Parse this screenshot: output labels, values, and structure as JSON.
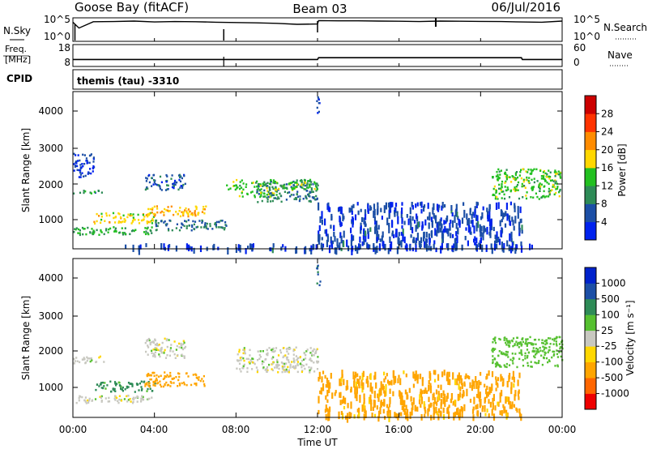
{
  "header": {
    "station": "Goose Bay (fitACF)",
    "beam": "Beam 03",
    "date": "06/Jul/2016"
  },
  "noise_panel": {
    "left_label": "N.Sky",
    "right_label": "N.Search",
    "left_ticks": [
      "10^5",
      "10^0"
    ],
    "right_ticks": [
      "10^5",
      "10^0"
    ]
  },
  "freq_panel": {
    "left_label_line1": "Freq.",
    "left_label_line2": "[MHz]",
    "left_ticks": [
      "18",
      "8"
    ],
    "right_label": "Nave",
    "right_ticks": [
      "60",
      "0"
    ]
  },
  "cpid": {
    "label": "CPID",
    "value": "themis (tau) -3310"
  },
  "power_panel": {
    "ylabel": "Slant Range [km]",
    "yticks": [
      "1000",
      "2000",
      "3000",
      "4000"
    ],
    "colorbar_label": "Power [dB]",
    "colorbar_ticks": [
      "4",
      "8",
      "12",
      "16",
      "20",
      "24",
      "28"
    ]
  },
  "velocity_panel": {
    "ylabel": "Slant Range [km]",
    "yticks": [
      "1000",
      "2000",
      "3000",
      "4000"
    ],
    "colorbar_label": "Velocity  [m s⁻¹]",
    "colorbar_ticks": [
      "-1000",
      "-500",
      "-100",
      "-25",
      "25",
      "100",
      "500",
      "1000"
    ]
  },
  "x_axis": {
    "label": "Time UT",
    "ticks": [
      "00:00",
      "04:00",
      "08:00",
      "12:00",
      "16:00",
      "20:00",
      "00:00"
    ]
  },
  "colors": {
    "power_scale": [
      "#0022ee",
      "#1c4fa6",
      "#2e8b57",
      "#22c020",
      "#ffd700",
      "#ff8c00",
      "#ff3300",
      "#cc0000"
    ],
    "velocity_scale": [
      "#ee0000",
      "#ff6600",
      "#ffa500",
      "#ffd700",
      "#c8c8c0",
      "#56c030",
      "#2e8b57",
      "#1c4fa6",
      "#0022cc"
    ]
  },
  "chart_data": [
    {
      "type": "line",
      "panel": "noise",
      "x": [
        0,
        24
      ],
      "xlabel": "",
      "ylabel": "N.Sky / N.Search",
      "yscale": "log",
      "ylim": [
        1,
        100000
      ],
      "series": [
        {
          "x": [
            0,
            0.3,
            1,
            2,
            3,
            4,
            5,
            6,
            7,
            8,
            9,
            10,
            11,
            12,
            12.05,
            13,
            14,
            15,
            16,
            17,
            18,
            19,
            20,
            21,
            22,
            23,
            24
          ],
          "y": [
            30000,
            800,
            40000,
            45000,
            60000,
            35000,
            45000,
            40000,
            30000,
            25000,
            20000,
            15000,
            8000,
            10000,
            80000,
            70000,
            70000,
            60000,
            55000,
            45000,
            60000,
            55000,
            50000,
            45000,
            35000,
            30000,
            60000
          ]
        }
      ]
    },
    {
      "type": "line",
      "panel": "frequency",
      "x": [
        0,
        24
      ],
      "xlabel": "",
      "ylabel": "Freq. [MHz]",
      "ylim": [
        8,
        18
      ],
      "series": [
        {
          "x": [
            0,
            12,
            12.05,
            22,
            22.05,
            24
          ],
          "y": [
            11,
            11,
            12,
            12,
            11,
            11
          ]
        }
      ]
    },
    {
      "type": "heatmap",
      "panel": "power",
      "xlabel": "Time UT",
      "ylabel": "Slant Range [km]",
      "xlim": [
        0,
        24
      ],
      "ylim": [
        180,
        4600
      ],
      "colorbar": {
        "label": "Power [dB]",
        "range": [
          0,
          32
        ],
        "ticks": [
          4,
          8,
          12,
          16,
          20,
          24,
          28
        ]
      },
      "features": [
        {
          "x": [
            0.0,
            1.5
          ],
          "y": [
            1750,
            1850
          ],
          "value": 10
        },
        {
          "x": [
            0.0,
            4.0
          ],
          "y": [
            580,
            800
          ],
          "value": 12
        },
        {
          "x": [
            1.0,
            4.0
          ],
          "y": [
            900,
            1200
          ],
          "value": 18
        },
        {
          "x": [
            3.5,
            6.5
          ],
          "y": [
            1100,
            1400
          ],
          "value": 20
        },
        {
          "x": [
            4.0,
            7.5
          ],
          "y": [
            700,
            1000
          ],
          "value": 8
        },
        {
          "x": [
            3.5,
            5.5
          ],
          "y": [
            1850,
            2300
          ],
          "value": 6
        },
        {
          "x": [
            8.0,
            10.0
          ],
          "y": [
            1650,
            1850
          ],
          "value": 16
        },
        {
          "x": [
            9.0,
            12.0
          ],
          "y": [
            1500,
            2100
          ],
          "value": 9
        },
        {
          "x": [
            7.5,
            12.0
          ],
          "y": [
            1850,
            2150
          ],
          "value": 14
        },
        {
          "x": [
            2.5,
            22.5
          ],
          "y": [
            180,
            320
          ],
          "value": 5
        },
        {
          "x": [
            12.0,
            22.0
          ],
          "y": [
            250,
            1500
          ],
          "value": 5
        },
        {
          "x": [
            20.5,
            24.0
          ],
          "y": [
            1600,
            2450
          ],
          "value": 14
        },
        {
          "x": [
            0.0,
            1.0
          ],
          "y": [
            2200,
            2900
          ],
          "value": 4
        },
        {
          "x": [
            11.9,
            12.1
          ],
          "y": [
            3900,
            4500
          ],
          "value": 5
        }
      ]
    },
    {
      "type": "heatmap",
      "panel": "velocity",
      "xlabel": "Time UT",
      "ylabel": "Slant Range [km]",
      "xlim": [
        0,
        24
      ],
      "ylim": [
        180,
        4600
      ],
      "colorbar": {
        "label": "Velocity  [m s⁻¹]",
        "ticks": [
          -1000,
          -500,
          -100,
          -25,
          25,
          100,
          500,
          1000
        ]
      },
      "features": [
        {
          "x": [
            0.0,
            1.5
          ],
          "y": [
            1700,
            1900
          ],
          "value": 0
        },
        {
          "x": [
            0.0,
            4.0
          ],
          "y": [
            580,
            800
          ],
          "value": 0
        },
        {
          "x": [
            1.0,
            4.0
          ],
          "y": [
            900,
            1200
          ],
          "value": 150
        },
        {
          "x": [
            3.5,
            6.5
          ],
          "y": [
            1050,
            1450
          ],
          "value": -300
        },
        {
          "x": [
            8.0,
            12.0
          ],
          "y": [
            1450,
            2150
          ],
          "value": 0
        },
        {
          "x": [
            3.5,
            5.5
          ],
          "y": [
            1850,
            2400
          ],
          "value": 0
        },
        {
          "x": [
            12.0,
            22.0
          ],
          "y": [
            200,
            1500
          ],
          "value": -150
        },
        {
          "x": [
            20.5,
            24.0
          ],
          "y": [
            1600,
            2450
          ],
          "value": 50
        },
        {
          "x": [
            11.9,
            12.1
          ],
          "y": [
            3900,
            4500
          ],
          "value": 600
        }
      ]
    }
  ]
}
